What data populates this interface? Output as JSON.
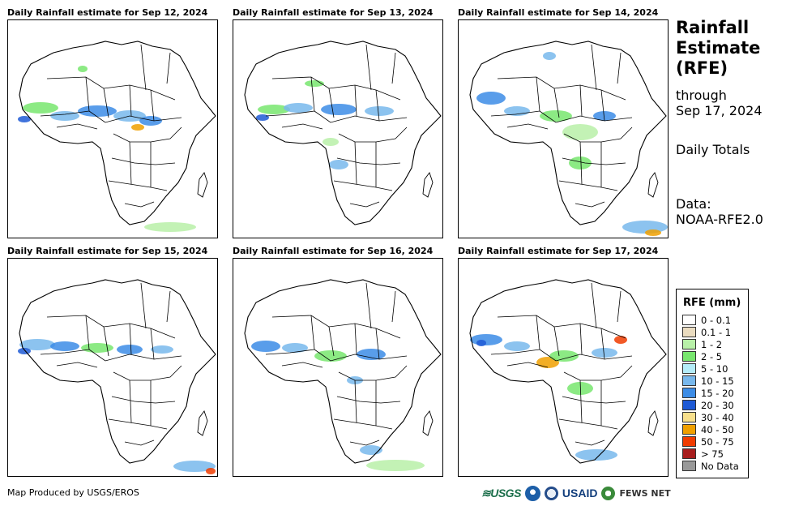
{
  "panels": [
    {
      "title": "Daily Rainfall estimate for Sep 12, 2024"
    },
    {
      "title": "Daily Rainfall estimate for Sep 13, 2024"
    },
    {
      "title": "Daily Rainfall estimate for Sep 14, 2024"
    },
    {
      "title": "Daily Rainfall estimate for Sep 15, 2024"
    },
    {
      "title": "Daily Rainfall estimate for Sep 16, 2024"
    },
    {
      "title": "Daily Rainfall estimate for Sep 17, 2024"
    }
  ],
  "sidebar": {
    "title_line1": "Rainfall",
    "title_line2": "Estimate",
    "title_line3": "(RFE)",
    "through_label": "through",
    "through_date": "Sep 17, 2024",
    "totals_label": "Daily Totals",
    "data_label": "Data:",
    "data_source": "NOAA-RFE2.0"
  },
  "legend": {
    "title": "RFE (mm)",
    "items": [
      {
        "label": "0 - 0.1",
        "color": "#ffffff"
      },
      {
        "label": "0.1 - 1",
        "color": "#eadcc0"
      },
      {
        "label": "1 - 2",
        "color": "#b8f0a8"
      },
      {
        "label": "2 - 5",
        "color": "#78e66e"
      },
      {
        "label": "5 - 10",
        "color": "#b4ecf8"
      },
      {
        "label": "10 - 15",
        "color": "#78b8ec"
      },
      {
        "label": "15 - 20",
        "color": "#3c8ce6"
      },
      {
        "label": "20 - 30",
        "color": "#1e5ad6"
      },
      {
        "label": "30 - 40",
        "color": "#f8e08c"
      },
      {
        "label": "40 - 50",
        "color": "#f0a000"
      },
      {
        "label": "50 - 75",
        "color": "#f03c00"
      },
      {
        "label": "> 75",
        "color": "#a81e1e"
      },
      {
        "label": "No Data",
        "color": "#999999"
      }
    ]
  },
  "footer": {
    "credit": "Map Produced by USGS/EROS",
    "logos": {
      "usgs": "≋USGS",
      "usaid": "USAID",
      "fews": "FEWS NET"
    }
  }
}
